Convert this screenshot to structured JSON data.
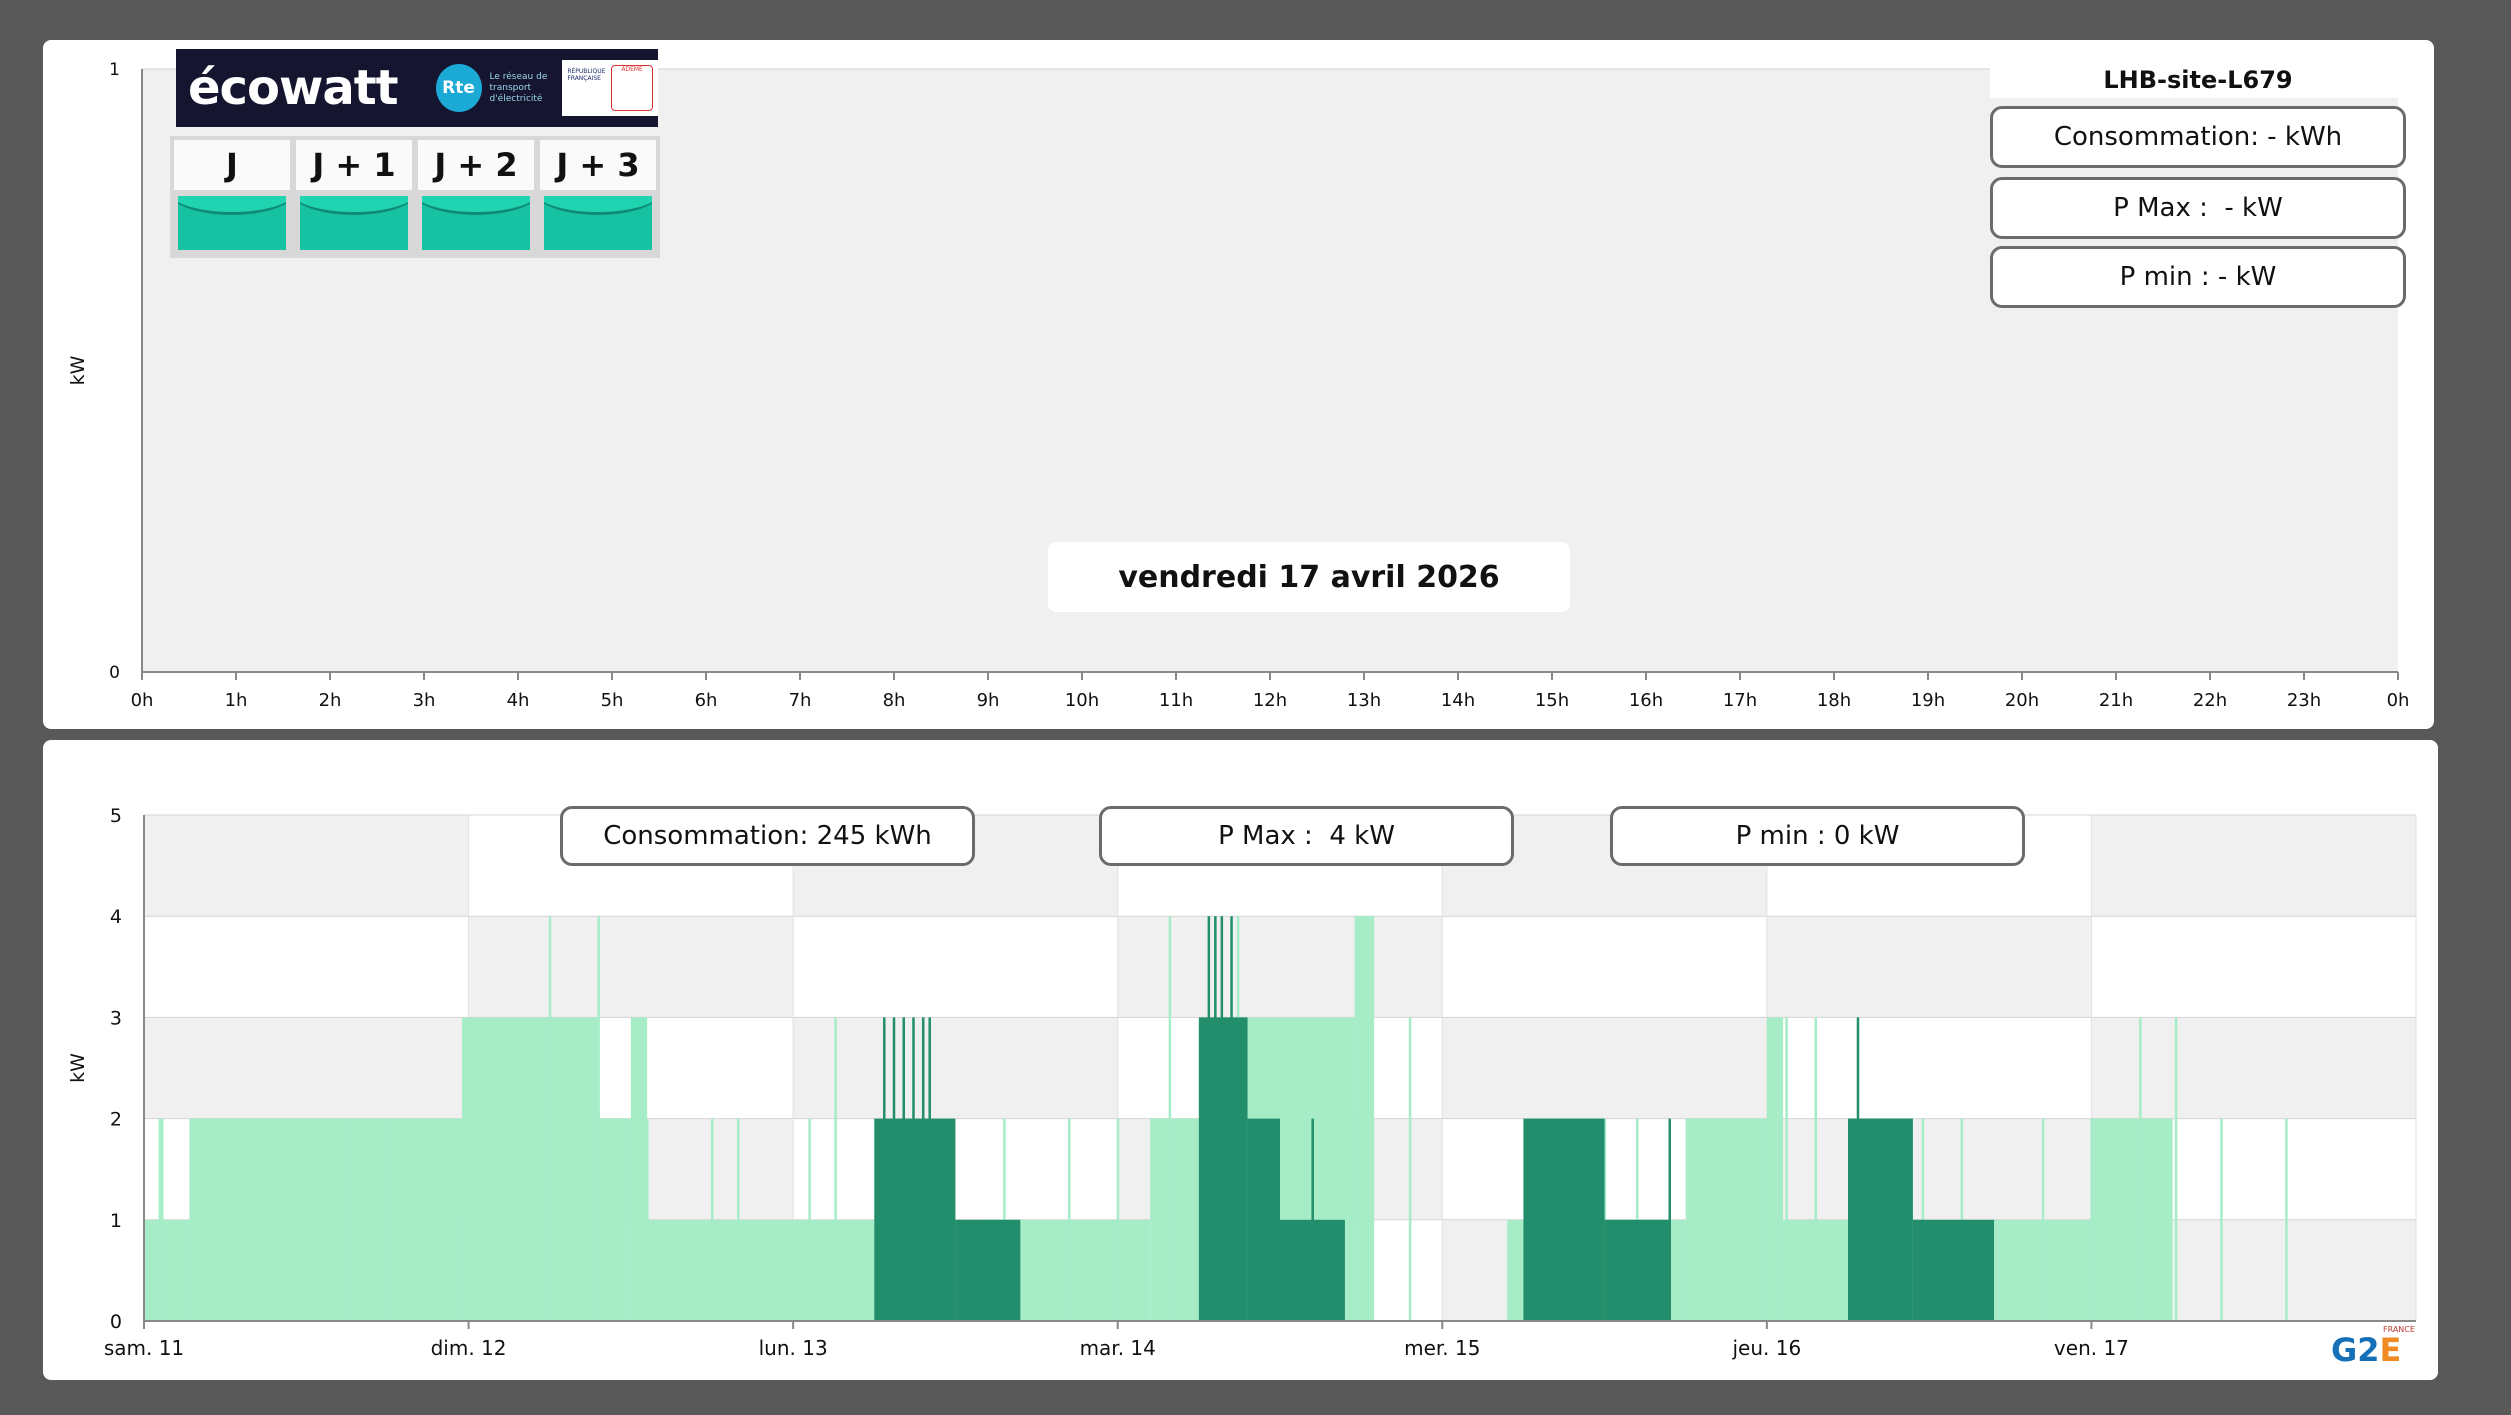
{
  "top_panel": {
    "site_name": "LHB-site-L679",
    "stats": {
      "consumption": "Consommation: - kWh",
      "pmax": "P Max :  - kW",
      "pmin": "P min : - kW"
    },
    "date_label": "vendredi 17 avril 2026",
    "ecowatt": {
      "brand": "écowatt",
      "rte_mark": "Rte",
      "rte_text": "Le réseau de transport d'électricité",
      "gov_text": "RÉPUBLIQUE FRANÇAISE",
      "ademe_text": "ADEME",
      "days": [
        {
          "label": "J",
          "level": "green"
        },
        {
          "label": "J + 1",
          "level": "green"
        },
        {
          "label": "J + 2",
          "level": "green"
        },
        {
          "label": "J + 3",
          "level": "green"
        }
      ],
      "level_color": "#17c2a2"
    }
  },
  "bottom_panel": {
    "stats": {
      "consumption": "Consommation: 245 kWh",
      "pmax": "P Max :  4 kW",
      "pmin": "P min : 0 kW"
    }
  },
  "logo": {
    "text_main": "G2",
    "text_accent": "E",
    "text_small": "FRANCE"
  },
  "colors": {
    "light_series": "#a5ecc7",
    "dark_series": "#228e6c",
    "grid_band": "#f0f0f0"
  },
  "chart_data": [
    {
      "type": "bar",
      "title": "",
      "ylabel": "kW",
      "ylim": [
        0,
        1
      ],
      "yticks": [
        "0",
        "1"
      ],
      "x_ticks": [
        "0h",
        "1h",
        "2h",
        "3h",
        "4h",
        "5h",
        "6h",
        "7h",
        "8h",
        "9h",
        "10h",
        "11h",
        "12h",
        "13h",
        "14h",
        "15h",
        "16h",
        "17h",
        "18h",
        "19h",
        "20h",
        "21h",
        "22h",
        "23h",
        "0h"
      ],
      "series": []
    },
    {
      "type": "bar",
      "title": "",
      "ylabel": "kW",
      "ylim": [
        0,
        5
      ],
      "yticks": [
        "0",
        "1",
        "2",
        "3",
        "4",
        "5"
      ],
      "x_ticks": [
        "sam. 11",
        "dim. 12",
        "lun. 13",
        "mar. 14",
        "mer. 15",
        "jeu. 16",
        "ven. 17"
      ],
      "x_range_days": [
        0,
        7
      ],
      "series": [
        {
          "color": "light",
          "segments": [
            {
              "start": 0.0,
              "end": 0.045,
              "value": 1
            },
            {
              "start": 0.045,
              "end": 0.06,
              "value": 2
            },
            {
              "start": 0.06,
              "end": 0.14,
              "value": 1
            },
            {
              "start": 0.14,
              "end": 0.98,
              "value": 2
            },
            {
              "start": 0.98,
              "end": 1.4,
              "value": 3
            },
            {
              "start": 1.4,
              "end": 1.5,
              "value": 2
            },
            {
              "start": 1.5,
              "end": 1.55,
              "value": 3
            },
            {
              "start": 1.55,
              "end": 2.25,
              "value": 1
            },
            {
              "start": 2.6,
              "end": 3.1,
              "value": 1
            },
            {
              "start": 3.1,
              "end": 3.25,
              "value": 2
            },
            {
              "start": 3.25,
              "end": 3.73,
              "value": 3
            },
            {
              "start": 3.73,
              "end": 3.79,
              "value": 4
            },
            {
              "start": 4.2,
              "end": 4.75,
              "value": 1
            },
            {
              "start": 4.75,
              "end": 5.0,
              "value": 2
            },
            {
              "start": 5.0,
              "end": 5.05,
              "value": 3
            },
            {
              "start": 5.05,
              "end": 5.25,
              "value": 1
            },
            {
              "start": 5.7,
              "end": 6.0,
              "value": 1
            },
            {
              "start": 6.0,
              "end": 6.25,
              "value": 2
            }
          ],
          "spikes": [
            {
              "x": 0.62,
              "value": 2
            },
            {
              "x": 0.75,
              "value": 2
            },
            {
              "x": 1.25,
              "value": 4
            },
            {
              "x": 1.4,
              "value": 4
            },
            {
              "x": 1.55,
              "value": 2
            },
            {
              "x": 1.75,
              "value": 2
            },
            {
              "x": 1.83,
              "value": 2
            },
            {
              "x": 2.05,
              "value": 2
            },
            {
              "x": 2.13,
              "value": 3
            },
            {
              "x": 2.65,
              "value": 2
            },
            {
              "x": 2.85,
              "value": 2
            },
            {
              "x": 3.0,
              "value": 2
            },
            {
              "x": 3.16,
              "value": 4
            },
            {
              "x": 3.3,
              "value": 4
            },
            {
              "x": 3.37,
              "value": 4
            },
            {
              "x": 3.9,
              "value": 3
            },
            {
              "x": 4.5,
              "value": 2
            },
            {
              "x": 4.6,
              "value": 2
            },
            {
              "x": 5.06,
              "value": 3
            },
            {
              "x": 5.15,
              "value": 3
            },
            {
              "x": 5.48,
              "value": 2
            },
            {
              "x": 5.6,
              "value": 2
            },
            {
              "x": 5.85,
              "value": 2
            },
            {
              "x": 6.0,
              "value": 2
            },
            {
              "x": 6.15,
              "value": 3
            },
            {
              "x": 6.26,
              "value": 3
            },
            {
              "x": 6.4,
              "value": 2
            },
            {
              "x": 6.6,
              "value": 2
            }
          ]
        },
        {
          "color": "dark",
          "segments": [
            {
              "start": 2.25,
              "end": 2.5,
              "value": 2
            },
            {
              "start": 2.5,
              "end": 2.7,
              "value": 1
            },
            {
              "start": 3.25,
              "end": 3.4,
              "value": 3
            },
            {
              "start": 3.4,
              "end": 3.5,
              "value": 2
            },
            {
              "start": 3.5,
              "end": 3.7,
              "value": 1
            },
            {
              "start": 4.25,
              "end": 4.5,
              "value": 2
            },
            {
              "start": 4.5,
              "end": 4.7,
              "value": 1
            },
            {
              "start": 5.25,
              "end": 5.45,
              "value": 2
            },
            {
              "start": 5.45,
              "end": 5.7,
              "value": 1
            }
          ],
          "spikes": [
            {
              "x": 2.28,
              "value": 3
            },
            {
              "x": 2.31,
              "value": 3
            },
            {
              "x": 2.34,
              "value": 3
            },
            {
              "x": 2.37,
              "value": 3
            },
            {
              "x": 2.4,
              "value": 3
            },
            {
              "x": 2.42,
              "value": 3
            },
            {
              "x": 3.28,
              "value": 4
            },
            {
              "x": 3.3,
              "value": 4
            },
            {
              "x": 3.32,
              "value": 4
            },
            {
              "x": 3.35,
              "value": 4
            },
            {
              "x": 3.6,
              "value": 2
            },
            {
              "x": 4.7,
              "value": 2
            },
            {
              "x": 5.28,
              "value": 3
            },
            {
              "x": 5.33,
              "value": 2
            },
            {
              "x": 5.36,
              "value": 2
            }
          ]
        }
      ]
    }
  ]
}
